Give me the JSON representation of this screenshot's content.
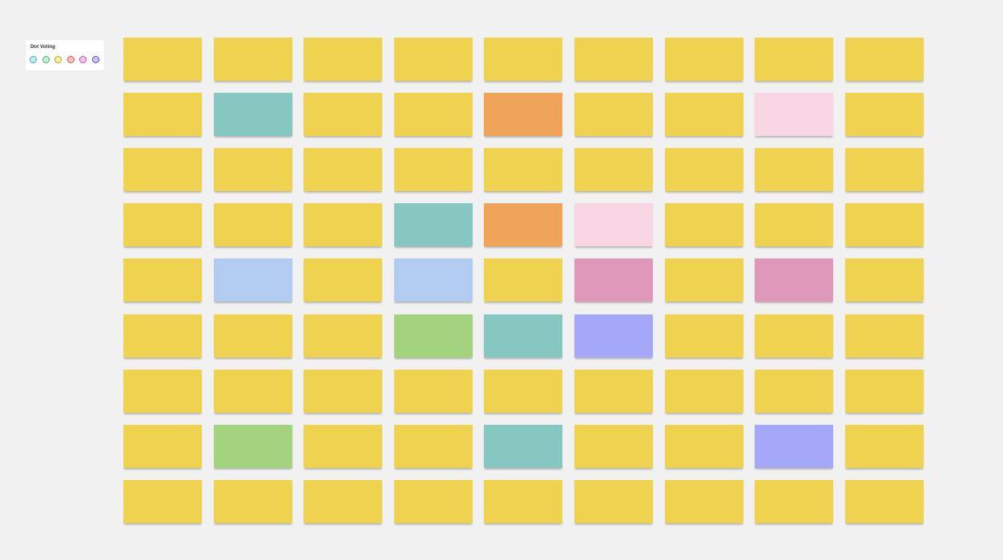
{
  "voting_panel": {
    "title": "Dot Voting",
    "dots": [
      {
        "name": "voting-dot-cyan",
        "fill": "#c8ecf4",
        "border": "#3ea9c2"
      },
      {
        "name": "voting-dot-green",
        "fill": "#c9efd6",
        "border": "#3fae6c"
      },
      {
        "name": "voting-dot-yellow",
        "fill": "#fbf1a7",
        "border": "#b59c14"
      },
      {
        "name": "voting-dot-red",
        "fill": "#f9c5c5",
        "border": "#c74b4b"
      },
      {
        "name": "voting-dot-pink",
        "fill": "#f0c8f2",
        "border": "#b14bb6"
      },
      {
        "name": "voting-dot-purple",
        "fill": "#cfc8f6",
        "border": "#5a49c2"
      }
    ]
  },
  "palette": {
    "yellow": "#efd24f",
    "teal": "#86c8c1",
    "orange": "#f0a45a",
    "light_pink": "#f8d5e2",
    "blue": "#b2cbf1",
    "magenta": "#df98b9",
    "green": "#a4d37f",
    "periwinkle": "#a5a8f8"
  },
  "sticky_notes": [
    [
      "yellow",
      "yellow",
      "yellow",
      "yellow",
      "yellow",
      "yellow",
      "yellow",
      "yellow",
      "yellow"
    ],
    [
      "yellow",
      "teal",
      "yellow",
      "yellow",
      "orange",
      "yellow",
      "yellow",
      "light_pink",
      "yellow"
    ],
    [
      "yellow",
      "yellow",
      "yellow",
      "yellow",
      "yellow",
      "yellow",
      "yellow",
      "yellow",
      "yellow"
    ],
    [
      "yellow",
      "yellow",
      "yellow",
      "teal",
      "orange",
      "light_pink",
      "yellow",
      "yellow",
      "yellow"
    ],
    [
      "yellow",
      "blue",
      "yellow",
      "blue",
      "yellow",
      "magenta",
      "yellow",
      "magenta",
      "yellow"
    ],
    [
      "yellow",
      "yellow",
      "yellow",
      "green",
      "teal",
      "periwinkle",
      "yellow",
      "yellow",
      "yellow"
    ],
    [
      "yellow",
      "yellow",
      "yellow",
      "yellow",
      "yellow",
      "yellow",
      "yellow",
      "yellow",
      "yellow"
    ],
    [
      "yellow",
      "green",
      "yellow",
      "yellow",
      "teal",
      "yellow",
      "yellow",
      "periwinkle",
      "yellow"
    ],
    [
      "yellow",
      "yellow",
      "yellow",
      "yellow",
      "yellow",
      "yellow",
      "yellow",
      "yellow",
      "yellow"
    ]
  ]
}
